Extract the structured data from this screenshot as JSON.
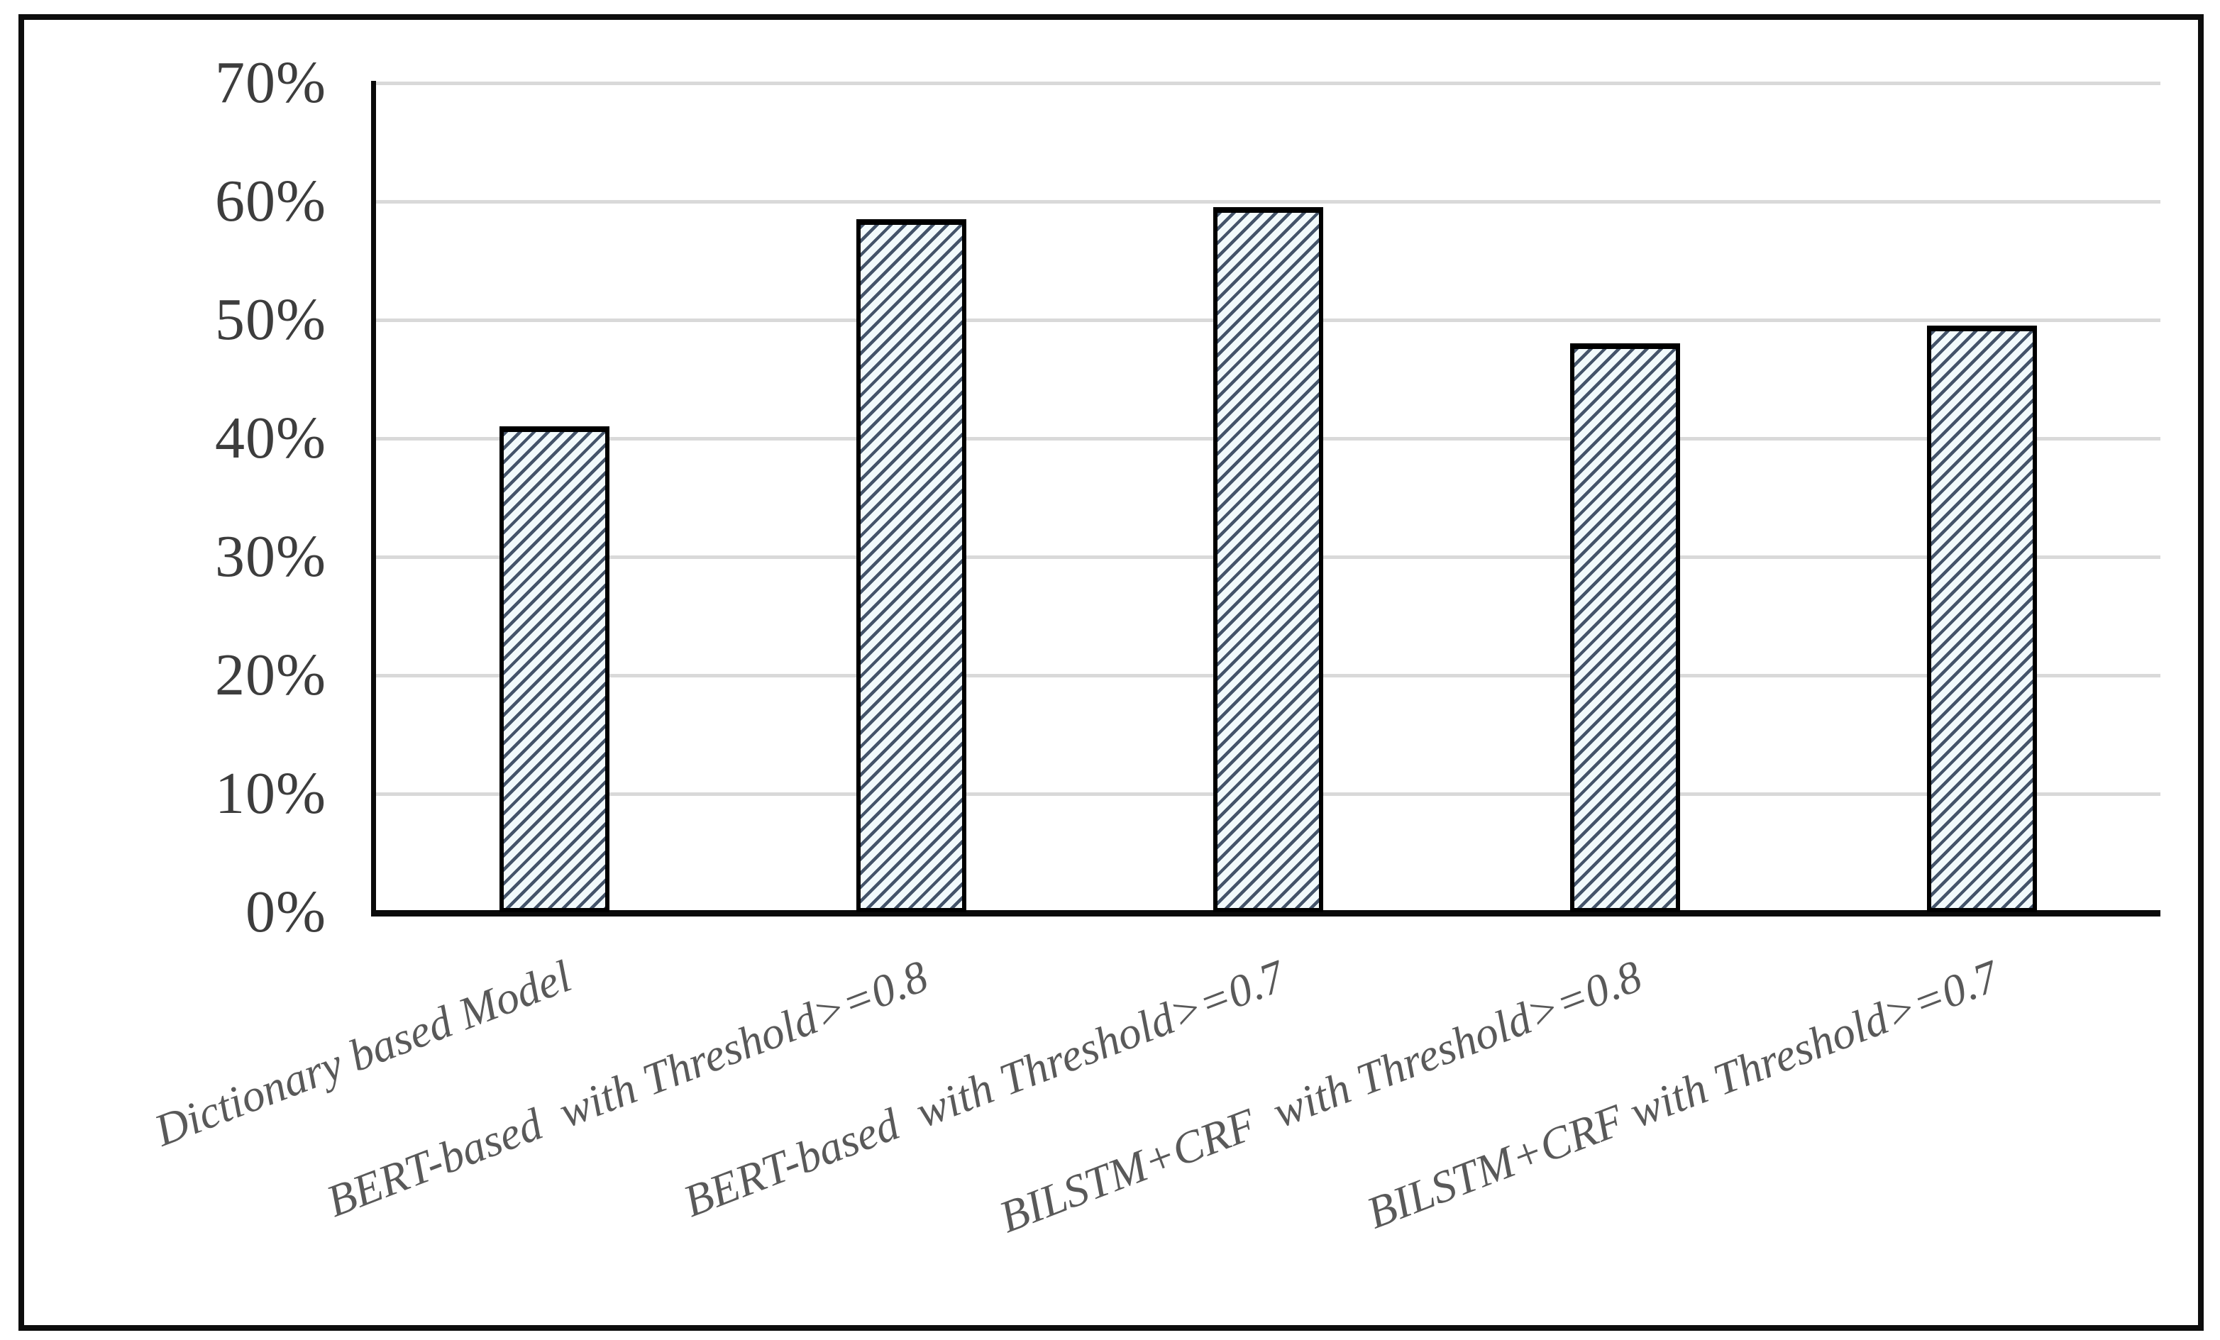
{
  "figure": {
    "description": "Hatched single-series bar chart figure with black outer border",
    "border_color": "#000000",
    "background_color": "#ffffff"
  },
  "chart_data": {
    "type": "bar",
    "title": "",
    "xlabel": "",
    "ylabel": "",
    "categories": [
      "Dictionary based Model",
      "BERT-based  with Threshold>=0.8",
      "BERT-based  with Threshold>=0.7",
      "BILSTM+CRF  with Threshold>=0.8",
      "BILSTM+CRF with Threshold>=0.7"
    ],
    "values": [
      41,
      58.5,
      59.5,
      48,
      49.5
    ],
    "value_unit": "%",
    "y_ticks": [
      "70%",
      "60%",
      "50%",
      "40%",
      "30%",
      "20%",
      "10%",
      "0%"
    ],
    "ylim": [
      0,
      70
    ],
    "y_tick_step": 10,
    "grid": "horizontal",
    "legend": "none",
    "bar_style": {
      "fill": "#f2fafc",
      "hatch": "diagonal-forward",
      "hatch_color": "#44546a",
      "border_color": "#000000"
    },
    "gridline_color": "#d9d9d9",
    "axis_color": "#000000",
    "y_tick_label_color": "#3d3d3d",
    "x_tick_label_color": "#595959",
    "x_tick_label_rotation_deg": -21
  }
}
